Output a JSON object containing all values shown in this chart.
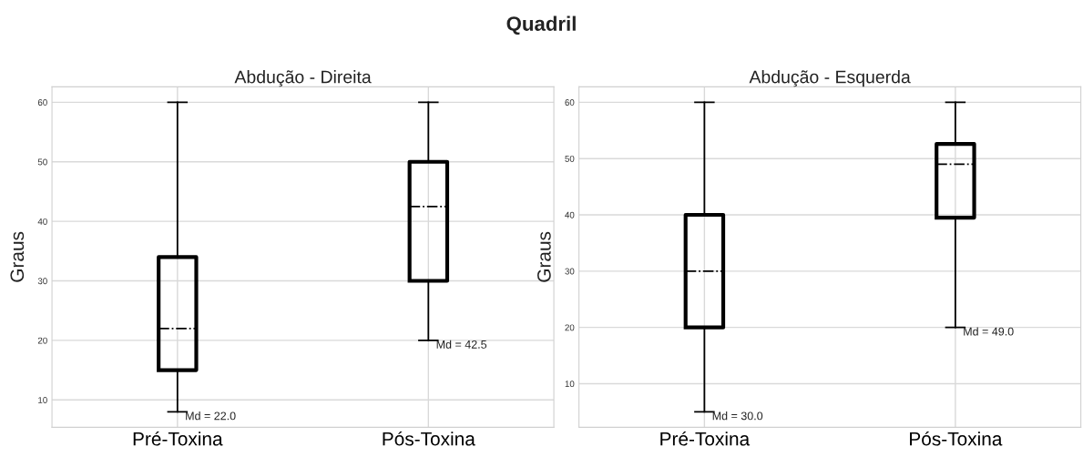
{
  "chart_data": [
    {
      "type": "box",
      "title": "Abdução - Direita",
      "ylabel": "Graus",
      "categories": [
        "Pré-Toxina",
        "Pós-Toxina"
      ],
      "boxes": [
        {
          "low": 8,
          "q1": 15,
          "median": 22,
          "q3": 34,
          "high": 60
        },
        {
          "low": 20,
          "q1": 30,
          "median": 42.5,
          "q3": 50,
          "high": 60
        }
      ],
      "ylim": [
        5.4,
        62.6
      ],
      "yticks": [
        10,
        20,
        30,
        40,
        50,
        60
      ],
      "grid": true,
      "annotations": [
        {
          "text": "Md = 22.0",
          "x": "Pré-Toxina",
          "y": 8
        },
        {
          "text": "Md = 42.5",
          "x": "Pós-Toxina",
          "y": 20
        },
        "Quadril"
      ]
    },
    {
      "type": "box",
      "title": "Abdução - Esquerda",
      "ylabel": "Graus",
      "categories": [
        "Pré-Toxina",
        "Pós-Toxina"
      ],
      "boxes": [
        {
          "low": 5,
          "q1": 20,
          "median": 30,
          "q3": 40,
          "high": 60
        },
        {
          "low": 20,
          "q1": 39.5,
          "median": 49,
          "q3": 52.6,
          "high": 60
        }
      ],
      "ylim": [
        2.25,
        62.75
      ],
      "yticks": [
        10,
        20,
        30,
        40,
        50,
        60
      ],
      "grid": true,
      "annotations": [
        {
          "text": "Md = 30.0",
          "x": "Pré-Toxina",
          "y": 5
        },
        {
          "text": "Md = 49.0",
          "x": "Pós-Toxina",
          "y": 20
        }
      ]
    }
  ]
}
